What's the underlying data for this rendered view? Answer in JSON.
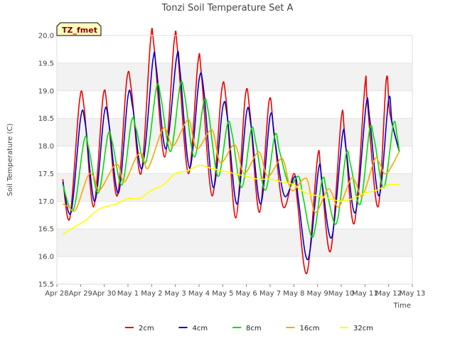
{
  "chart_data": {
    "type": "line",
    "title": "Tonzi Soil Temperature Set A",
    "xlabel": "Time",
    "ylabel": "Soil Temperature (C)",
    "badge": "TZ_fmet",
    "ylim": [
      15.5,
      20.0
    ],
    "xlim": [
      0,
      15
    ],
    "x_tick_labels": [
      "Apr 28",
      "Apr 29",
      "Apr 30",
      "May 1",
      "May 2",
      "May 3",
      "May 4",
      "May 5",
      "May 6",
      "May 7",
      "May 8",
      "May 9",
      "May 10",
      "May 11",
      "May 12",
      "May 13"
    ],
    "y_ticks": [
      "15.5",
      "16.0",
      "16.5",
      "17.0",
      "17.5",
      "18.0",
      "18.5",
      "19.0",
      "19.5",
      "20.0"
    ],
    "grid": "horizontal bands",
    "legend_position": "bottom",
    "series": [
      {
        "name": "2cm",
        "color": "#ee0000",
        "x": [
          0.25,
          0.55,
          0.95,
          1.15,
          1.55,
          1.95,
          2.15,
          2.55,
          2.95,
          3.15,
          3.55,
          3.95,
          4.1,
          4.55,
          4.95,
          5.1,
          5.55,
          5.95,
          6.1,
          6.55,
          6.95,
          7.15,
          7.55,
          7.95,
          8.15,
          8.55,
          8.95,
          9.15,
          9.55,
          10.0,
          10.15,
          10.55,
          11.0,
          11.15,
          11.55,
          12.0,
          12.15,
          12.55,
          13.0,
          13.1,
          13.55,
          13.9,
          14.05,
          14.45
        ],
        "values": [
          17.4,
          16.7,
          18.8,
          18.7,
          16.9,
          18.9,
          18.6,
          17.1,
          19.2,
          19.0,
          17.5,
          19.9,
          19.8,
          17.8,
          19.9,
          19.7,
          17.5,
          19.5,
          19.3,
          17.1,
          19.0,
          18.8,
          16.7,
          18.9,
          18.6,
          16.8,
          18.8,
          18.3,
          16.9,
          17.5,
          17.0,
          15.7,
          17.8,
          17.5,
          16.1,
          18.5,
          18.2,
          16.6,
          19.1,
          18.8,
          16.9,
          19.2,
          18.6,
          17.9
        ]
      },
      {
        "name": "4cm",
        "color": "#0000cc",
        "x": [
          0.25,
          0.6,
          1.0,
          1.2,
          1.6,
          2.0,
          2.2,
          2.6,
          3.0,
          3.2,
          3.6,
          4.05,
          4.2,
          4.6,
          5.05,
          5.2,
          5.6,
          6.0,
          6.2,
          6.6,
          7.0,
          7.2,
          7.6,
          8.0,
          8.2,
          8.6,
          9.0,
          9.2,
          9.6,
          10.05,
          10.2,
          10.6,
          11.05,
          11.2,
          11.6,
          12.05,
          12.2,
          12.6,
          13.05,
          13.2,
          13.6,
          14.0,
          14.15,
          14.45
        ],
        "values": [
          17.35,
          16.8,
          18.5,
          18.4,
          17.0,
          18.6,
          18.4,
          17.15,
          18.9,
          18.7,
          17.6,
          19.55,
          19.4,
          17.95,
          19.6,
          19.35,
          17.6,
          19.2,
          19.0,
          17.25,
          18.7,
          18.5,
          16.95,
          18.6,
          18.35,
          16.95,
          18.55,
          18.1,
          17.1,
          17.45,
          17.0,
          15.95,
          17.6,
          17.3,
          16.35,
          18.2,
          17.95,
          16.8,
          18.75,
          18.5,
          17.1,
          18.85,
          18.4,
          17.9
        ]
      },
      {
        "name": "8cm",
        "color": "#00dd00",
        "x": [
          0.25,
          0.7,
          1.15,
          1.35,
          1.75,
          2.15,
          2.35,
          2.75,
          3.15,
          3.35,
          3.75,
          4.2,
          4.4,
          4.8,
          5.2,
          5.4,
          5.8,
          6.2,
          6.4,
          6.8,
          7.2,
          7.4,
          7.8,
          8.2,
          8.4,
          8.8,
          9.2,
          9.4,
          9.8,
          10.2,
          10.4,
          10.8,
          11.2,
          11.4,
          11.8,
          12.2,
          12.4,
          12.8,
          13.2,
          13.4,
          13.8,
          14.2,
          14.35,
          14.45
        ],
        "values": [
          17.3,
          16.85,
          18.1,
          17.95,
          17.15,
          18.2,
          18.05,
          17.3,
          18.45,
          18.3,
          17.7,
          19.05,
          18.85,
          17.9,
          19.1,
          18.9,
          17.8,
          18.8,
          18.6,
          17.45,
          18.4,
          18.2,
          17.25,
          18.3,
          18.05,
          17.2,
          18.2,
          17.9,
          17.3,
          17.45,
          17.05,
          16.35,
          17.4,
          17.15,
          16.6,
          17.85,
          17.65,
          16.95,
          18.3,
          18.1,
          17.25,
          18.4,
          18.2,
          17.9
        ]
      },
      {
        "name": "16cm",
        "color": "#ffa500",
        "x": [
          0.25,
          0.5,
          0.8,
          1.3,
          1.55,
          1.8,
          2.35,
          2.6,
          2.85,
          3.35,
          3.6,
          3.85,
          4.4,
          4.6,
          4.9,
          5.4,
          5.6,
          5.9,
          6.4,
          6.6,
          6.9,
          7.4,
          7.6,
          7.9,
          8.4,
          8.6,
          8.9,
          9.4,
          9.6,
          9.9,
          10.4,
          10.6,
          10.9,
          11.4,
          11.6,
          11.9,
          12.4,
          12.6,
          12.9,
          13.4,
          13.6,
          13.9,
          14.45
        ],
        "values": [
          16.95,
          16.9,
          16.85,
          17.45,
          17.45,
          17.2,
          17.6,
          17.65,
          17.35,
          17.8,
          17.85,
          17.6,
          18.25,
          18.3,
          18.0,
          18.4,
          18.45,
          17.95,
          18.25,
          18.25,
          17.7,
          18.0,
          17.95,
          17.5,
          17.85,
          17.85,
          17.45,
          17.75,
          17.7,
          17.2,
          17.4,
          17.35,
          16.8,
          17.2,
          17.15,
          16.9,
          17.4,
          17.35,
          17.1,
          17.75,
          17.7,
          17.5,
          17.9
        ]
      },
      {
        "name": "32cm",
        "color": "#ffff00",
        "x": [
          0.25,
          0.8,
          1.2,
          1.6,
          2.0,
          2.5,
          3.0,
          3.5,
          4.0,
          4.5,
          5.0,
          5.5,
          6.0,
          6.5,
          7.0,
          7.5,
          8.0,
          8.5,
          9.0,
          9.5,
          10.0,
          10.5,
          11.0,
          11.5,
          12.0,
          12.5,
          13.0,
          13.5,
          14.0,
          14.45
        ],
        "values": [
          16.4,
          16.55,
          16.65,
          16.8,
          16.9,
          16.95,
          17.05,
          17.05,
          17.2,
          17.3,
          17.5,
          17.55,
          17.65,
          17.6,
          17.55,
          17.5,
          17.45,
          17.4,
          17.4,
          17.35,
          17.3,
          17.15,
          17.1,
          17.05,
          17.0,
          17.05,
          17.15,
          17.2,
          17.3,
          17.3
        ]
      }
    ]
  }
}
